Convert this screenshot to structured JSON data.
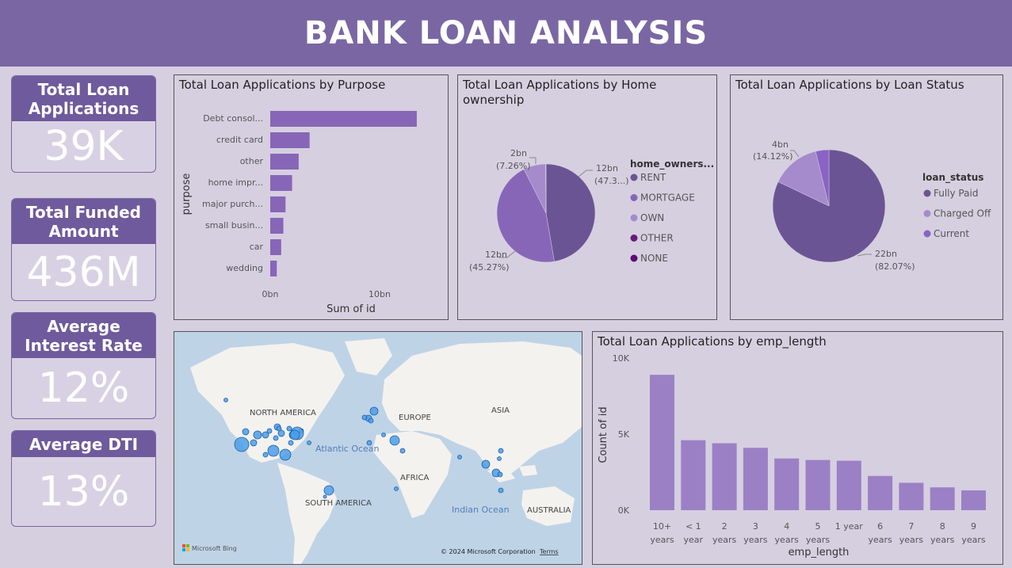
{
  "title": "BANK LOAN ANALYSIS",
  "kpis": [
    {
      "label": "Total Loan Applications",
      "value": "39K"
    },
    {
      "label": "Total Funded Amount",
      "value": "436M"
    },
    {
      "label": "Average Interest Rate",
      "value": "12%"
    },
    {
      "label": "Average DTI",
      "value": "13%"
    }
  ],
  "colors": {
    "header": "#7a66a3",
    "bar": "#8766b8",
    "emp_bar": "#9b80c6",
    "rent": "#6b5494",
    "mortgage": "#8766b8",
    "own": "#a58bcc",
    "other": "#6a1b7a",
    "none": "#5a0d6e",
    "fully_paid": "#6b5494",
    "charged_off": "#a58bcc",
    "current": "#8a63c4"
  },
  "chart_data": [
    {
      "type": "bar",
      "orientation": "horizontal",
      "title": "Total Loan Applications by Purpose",
      "xlabel": "Sum of id",
      "ylabel": "purpose",
      "categories": [
        "Debt consol...",
        "credit card",
        "other",
        "home impr...",
        "major purch...",
        "small busin...",
        "car",
        "wedding"
      ],
      "values": [
        13.4,
        3.6,
        2.6,
        2.0,
        1.4,
        1.2,
        1.0,
        0.6
      ],
      "xlim": [
        0,
        15
      ],
      "xticks": [
        "0bn",
        "10bn"
      ]
    },
    {
      "type": "pie",
      "title": "Total Loan Applications by Home ownership",
      "legend_title": "home_owners...",
      "legend": [
        "RENT",
        "MORTGAGE",
        "OWN",
        "OTHER",
        "NONE"
      ],
      "slices": [
        {
          "name": "RENT",
          "value": 47.3,
          "label": "12bn",
          "pct": "(47.3...)"
        },
        {
          "name": "MORTGAGE",
          "value": 45.27,
          "label": "12bn",
          "pct": "(45.27%)"
        },
        {
          "name": "OWN",
          "value": 7.26,
          "label": "2bn",
          "pct": "(7.26%)"
        },
        {
          "name": "OTHER",
          "value": 0.1
        },
        {
          "name": "NONE",
          "value": 0.07
        }
      ]
    },
    {
      "type": "pie",
      "title": "Total Loan Applications by Loan Status",
      "legend_title": "loan_status",
      "legend": [
        "Fully Paid",
        "Charged Off",
        "Current"
      ],
      "slices": [
        {
          "name": "Fully Paid",
          "value": 82.07,
          "label": "22bn",
          "pct": "(82.07%)"
        },
        {
          "name": "Charged Off",
          "value": 14.12,
          "label": "4bn",
          "pct": "(14.12%)"
        },
        {
          "name": "Current",
          "value": 3.81
        }
      ]
    },
    {
      "type": "bar",
      "title": "Total Loan Applications by emp_length",
      "xlabel": "emp_length",
      "ylabel": "Count of id",
      "categories": [
        [
          "10+",
          "years"
        ],
        [
          "< 1",
          "year"
        ],
        [
          "2",
          "years"
        ],
        [
          "3",
          "years"
        ],
        [
          "4",
          "years"
        ],
        [
          "5",
          "years"
        ],
        [
          "1 year",
          ""
        ],
        [
          "6",
          "years"
        ],
        [
          "7",
          "years"
        ],
        [
          "8",
          "years"
        ],
        [
          "9",
          "years"
        ]
      ],
      "values": [
        8900,
        4600,
        4400,
        4100,
        3400,
        3300,
        3250,
        2250,
        1800,
        1500,
        1300
      ],
      "ylim": [
        0,
        10000
      ],
      "yticks": [
        {
          "v": 0,
          "t": "0K"
        },
        {
          "v": 5000,
          "t": "5K"
        },
        {
          "v": 10000,
          "t": "10K"
        }
      ]
    }
  ],
  "map": {
    "labels": [
      "NORTH AMERICA",
      "EUROPE",
      "ASIA",
      "AFRICA",
      "SOUTH AMERICA",
      "AUSTRALIA"
    ],
    "ocean_labels": [
      "Atlantic Ocean",
      "Indian Ocean"
    ],
    "brand": "Microsoft Bing",
    "copyright": "© 2024 Microsoft Corporation",
    "terms": "Terms"
  }
}
